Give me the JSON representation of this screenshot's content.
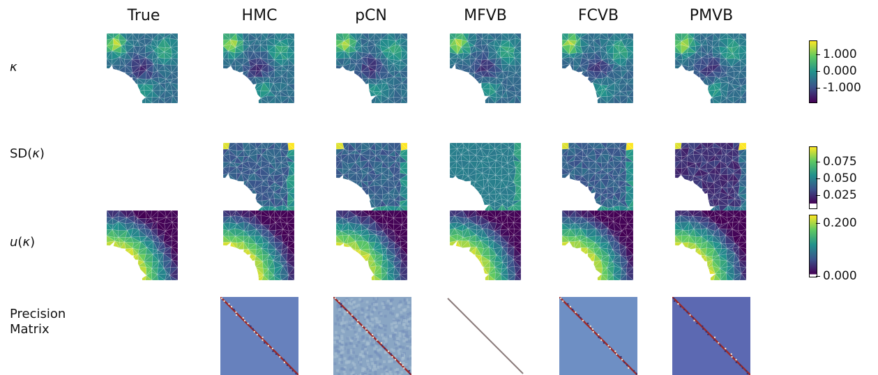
{
  "columns": [
    "True",
    "HMC",
    "pCN",
    "MFVB",
    "FCVB",
    "PMVB"
  ],
  "rows": {
    "kappa": "κ",
    "sd_prefix": "SD(",
    "sd_kappa": "κ",
    "sd_suffix": ")",
    "u_prefix": "u",
    "u_paren_open": "(",
    "u_kappa": "κ",
    "u_paren_close": ")",
    "precision_line1": "Precision",
    "precision_line2": "Matrix"
  },
  "colorbars": {
    "kappa": {
      "ticks": [
        "1.000",
        "0.000",
        "-1.000"
      ],
      "colors": [
        "#fde725",
        "#21918c",
        "#440154"
      ]
    },
    "sd": {
      "ticks": [
        "0.075",
        "0.050",
        "0.025"
      ],
      "colors": [
        "#fde725",
        "#21918c",
        "#440154"
      ]
    },
    "u": {
      "ticks": [
        "0.200",
        "0.000"
      ],
      "colors": [
        "#fde725",
        "#21918c",
        "#440154"
      ]
    }
  },
  "colors": {
    "viridis_low": "#440154",
    "viridis_mid": "#21918c",
    "viridis_high": "#fde725",
    "precision_bg_hmc": "#6781bd",
    "precision_bg_pcn": "#8aa6c4",
    "precision_bg_fcvb": "#6e8fc4",
    "precision_bg_pmvb": "#5c69b2",
    "diag_red": "#9b2a2a"
  }
}
